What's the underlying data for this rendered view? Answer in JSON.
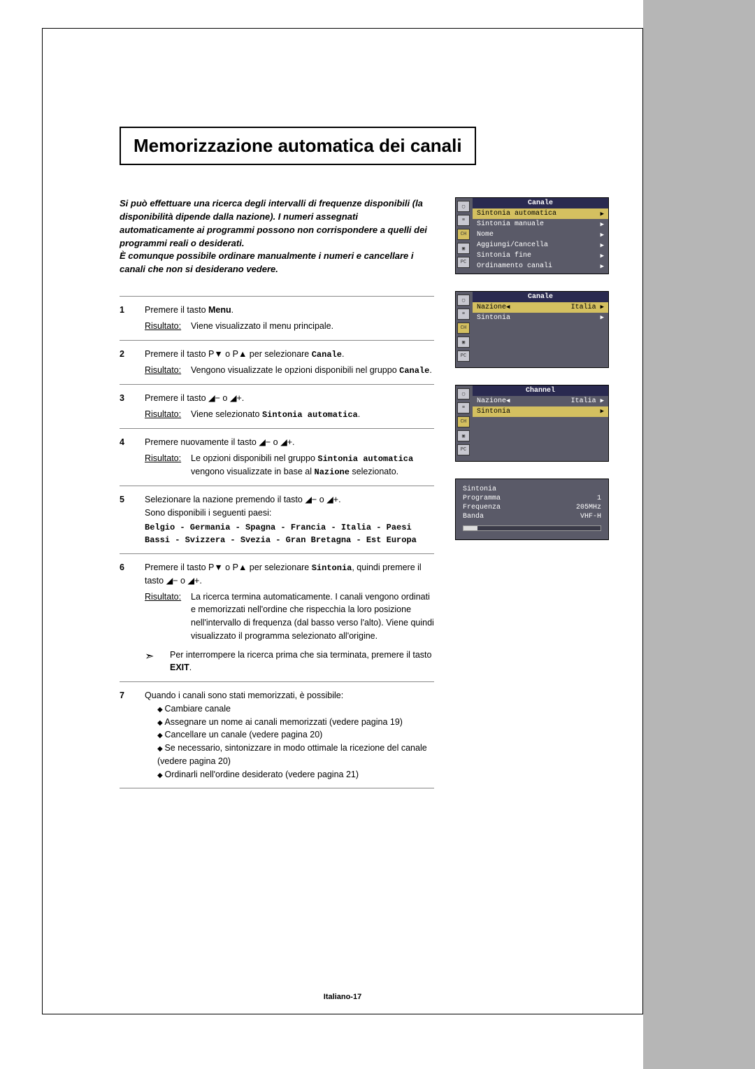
{
  "title": "Memorizzazione automatica dei canali",
  "intro_lines": [
    "Si può effettuare una ricerca degli intervalli di frequenze disponibili (la disponibilità dipende dalla nazione). I numeri assegnati automaticamente ai programmi possono non corrispondere a quelli dei programmi reali o desiderati.",
    "È comunque possibile ordinare manualmente i numeri e cancellare i canali che non si desiderano vedere."
  ],
  "result_label": "Risultato:",
  "steps": [
    {
      "num": "1",
      "main_pre": "Premere il tasto ",
      "main_bold": "Menu",
      "main_post": ".",
      "result": "Viene visualizzato il menu principale."
    },
    {
      "num": "2",
      "main_pre": "Premere il tasto P▼ o P▲ per selezionare ",
      "main_mono": "Canale",
      "main_post": ".",
      "result_pre": "Vengono visualizzate le opzioni disponibili nel gruppo ",
      "result_mono": "Canale",
      "result_post": "."
    },
    {
      "num": "3",
      "main": "Premere il tasto ◢− o ◢+.",
      "result_pre": "Viene selezionato ",
      "result_mono": "Sintonia automatica",
      "result_post": "."
    },
    {
      "num": "4",
      "main": "Premere nuovamente il tasto ◢− o ◢+.",
      "result_pre": "Le opzioni disponibili nel gruppo ",
      "result_mono": "Sintonia automatica",
      "result_mid": " vengono visualizzate in base al ",
      "result_mono2": "Nazione",
      "result_post": " selezionato."
    },
    {
      "num": "5",
      "line1": "Selezionare la nazione premendo il tasto ◢− o ◢+.",
      "line2": "Sono disponibili i seguenti paesi:",
      "countries": "Belgio - Germania - Spagna - Francia - Italia - Paesi Bassi - Svizzera - Svezia - Gran Bretagna - Est Europa"
    },
    {
      "num": "6",
      "main_pre": "Premere il tasto P▼ o P▲ per selezionare ",
      "main_mono": "Sintonia",
      "main_post": ", quindi premere il tasto ◢− o ◢+.",
      "result": "La ricerca termina automaticamente. I canali vengono ordinati e memorizzati nell'ordine che rispecchia la loro posizione nell'intervallo di frequenza (dal basso verso l'alto). Viene quindi visualizzato il programma selezionato all'origine.",
      "note_pre": "Per interrompere la ricerca prima che sia terminata, premere il tasto ",
      "note_bold": "EXIT",
      "note_post": "."
    },
    {
      "num": "7",
      "main": "Quando i canali sono stati memorizzati, è possibile:",
      "bullets": [
        "Cambiare canale",
        "Assegnare un nome ai canali memorizzati (vedere pagina 19)",
        "Cancellare un canale (vedere pagina 20)",
        "Se necessario, sintonizzare in modo ottimale la ricezione del canale (vedere pagina 20)",
        "Ordinarli nell'ordine desiderato (vedere pagina 21)"
      ]
    }
  ],
  "osd1": {
    "title": "Canale",
    "items": [
      {
        "label": "Sintonia automatica",
        "hl": true
      },
      {
        "label": "Sintonia manuale",
        "hl": false
      },
      {
        "label": "Nome",
        "hl": false
      },
      {
        "label": "Aggiungi/Cancella",
        "hl": false
      },
      {
        "label": "Sintonia fine",
        "hl": false
      },
      {
        "label": "Ordinamento canali",
        "hl": false
      }
    ]
  },
  "osd2": {
    "title": "Canale",
    "items": [
      {
        "label": "Nazione",
        "value": "Italia",
        "hl": true,
        "larrow": true,
        "rarrow": true
      },
      {
        "label": "Sintonia",
        "value": "",
        "hl": false,
        "larrow": false,
        "rarrow": true
      }
    ]
  },
  "osd3": {
    "title": "Channel",
    "items": [
      {
        "label": "Nazione",
        "value": "Italia",
        "hl": false,
        "larrow": true,
        "rarrow": true
      },
      {
        "label": "Sintonia",
        "value": "",
        "hl": true,
        "larrow": false,
        "rarrow": true
      }
    ]
  },
  "osd4": {
    "rows": [
      {
        "label": "Sintonia",
        "value": ""
      },
      {
        "label": "Programma",
        "value": "1"
      },
      {
        "label": "Frequenza",
        "value": "205MHz"
      },
      {
        "label": "Banda",
        "value": "VHF-H"
      }
    ],
    "progress_pct": 10
  },
  "side_icons": [
    "▢",
    "≡",
    "CH",
    "▣",
    "PC"
  ],
  "footer": "Italiano-17",
  "colors": {
    "sidebar": "#b6b6b6",
    "osd_bg": "#5a5a68",
    "osd_title_bg": "#2a2a50",
    "osd_hl": "#d4c060"
  }
}
